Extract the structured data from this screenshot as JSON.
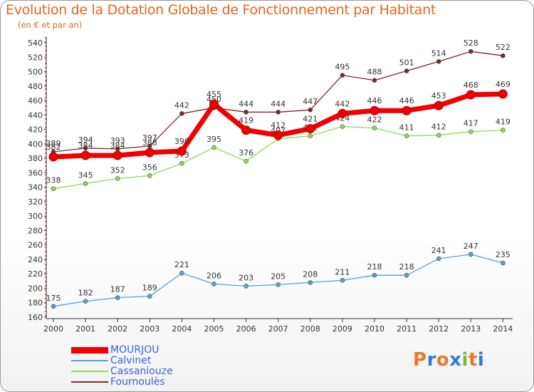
{
  "title": "Evolution de la Dotation Globale de Fonctionnement par Habitant",
  "subtitle": "(en € et par an)",
  "logo": {
    "text": "Proxiti",
    "letter_colors": [
      "#e8792a",
      "#2f7bd6",
      "#e8792a",
      "#2f7bd6",
      "#7ab733",
      "#e8792a",
      "#2f7bd6"
    ]
  },
  "chart_data": {
    "type": "line",
    "x": [
      "2000",
      "2001",
      "2002",
      "2003",
      "2004",
      "2005",
      "2006",
      "2007",
      "2008",
      "2009",
      "2010",
      "2011",
      "2012",
      "2013",
      "2014"
    ],
    "ylim": [
      160,
      540
    ],
    "ytick_step": 20,
    "grid": false,
    "legend_position": "bottom-left",
    "series": [
      {
        "name": "Fournoulès",
        "color": "#7a2a2a",
        "values": [
          389,
          394,
          393,
          397,
          442,
          450,
          444,
          444,
          447,
          495,
          488,
          501,
          514,
          528,
          522
        ]
      },
      {
        "name": "Cassaniouze",
        "color": "#8fd95a",
        "values": [
          338,
          345,
          352,
          356,
          373,
          395,
          376,
          407,
          411,
          424,
          422,
          411,
          412,
          417,
          419
        ]
      },
      {
        "name": "Calvinet",
        "color": "#5a9fd0",
        "values": [
          175,
          182,
          187,
          189,
          221,
          206,
          203,
          205,
          208,
          211,
          218,
          218,
          241,
          247,
          235
        ]
      },
      {
        "name": "MOURJOU",
        "color": "#f00000",
        "values": [
          382,
          384,
          384,
          388,
          390,
          455,
          419,
          412,
          421,
          442,
          446,
          446,
          453,
          468,
          469
        ]
      }
    ]
  }
}
